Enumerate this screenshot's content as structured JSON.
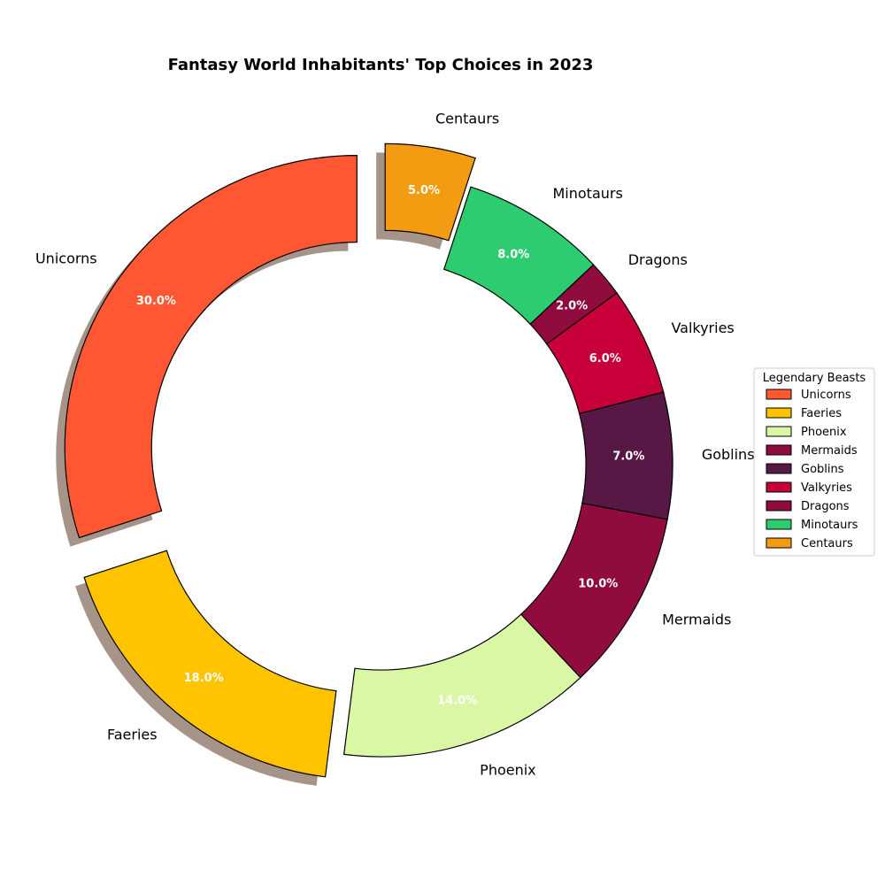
{
  "chart_data": {
    "type": "pie",
    "title": "Fantasy World Inhabitants' Top Choices in 2023",
    "categories": [
      "Unicorns",
      "Faeries",
      "Phoenix",
      "Mermaids",
      "Goblins",
      "Valkyries",
      "Dragons",
      "Minotaurs",
      "Centaurs"
    ],
    "values": [
      30,
      18,
      14,
      10,
      7,
      6,
      2,
      8,
      5
    ],
    "value_labels": [
      "30.0%",
      "18.0%",
      "14.0%",
      "10.0%",
      "7.0%",
      "6.0%",
      "2.0%",
      "8.0%",
      "5.0%"
    ],
    "colors": [
      "#FF5733",
      "#FFC300",
      "#DAF7A6",
      "#900C3F",
      "#581845",
      "#C70039",
      "#900C3F",
      "#2ECC71",
      "#F39C12"
    ],
    "exploded": [
      "Unicorns",
      "Faeries",
      "Centaurs"
    ],
    "donut": true,
    "shadow": true,
    "start_angle_deg": 90,
    "direction": "counterclockwise",
    "legend": {
      "title": "Legendary Beasts",
      "placement": "center-right"
    }
  }
}
